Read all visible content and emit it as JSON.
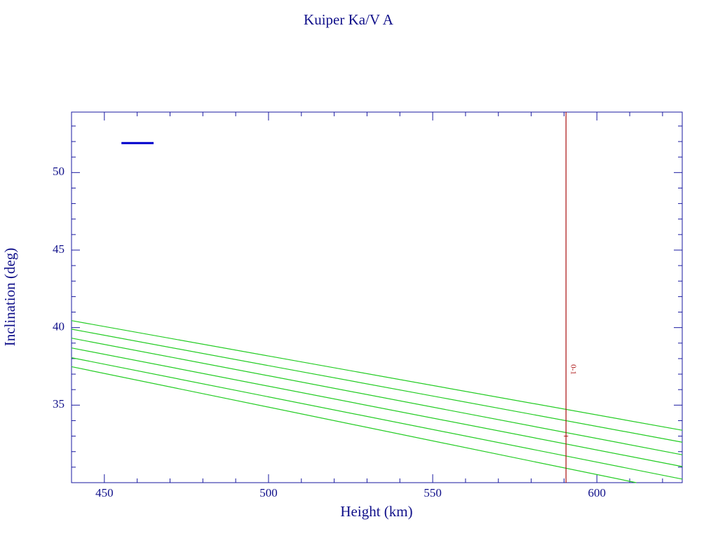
{
  "chart_data": {
    "type": "line",
    "title": "Kuiper Ka/V A",
    "x_label": "Height (km)",
    "y_label": "Inclination (deg)",
    "xlim": [
      440,
      626
    ],
    "ylim": [
      30,
      53.9
    ],
    "xticks": [
      450,
      500,
      550,
      600
    ],
    "yticks": [
      35,
      40,
      45,
      50
    ],
    "x_minor_ticks": [
      440,
      460,
      470,
      480,
      490,
      510,
      520,
      530,
      540,
      560,
      570,
      580,
      590,
      610,
      620
    ],
    "y_minor_ticks": [
      31,
      32,
      33,
      34,
      36,
      37,
      38,
      39,
      41,
      42,
      43,
      44,
      46,
      47,
      48,
      49,
      51,
      52,
      53
    ],
    "axis_color": "#1a1aa0",
    "series": [
      {
        "color": "#22cc22",
        "x": [
          440,
          626
        ],
        "values": [
          40.45,
          33.38
        ]
      },
      {
        "color": "#22cc22",
        "x": [
          440,
          626
        ],
        "values": [
          39.9,
          32.61
        ]
      },
      {
        "color": "#22cc22",
        "x": [
          440,
          626
        ],
        "values": [
          39.32,
          31.8
        ]
      },
      {
        "color": "#22cc22",
        "x": [
          440,
          626
        ],
        "values": [
          38.69,
          31.04
        ]
      },
      {
        "color": "#22cc22",
        "x": [
          440,
          626
        ],
        "values": [
          38.06,
          30.23
        ]
      },
      {
        "color": "#22cc22",
        "x": [
          440,
          612
        ],
        "values": [
          37.48,
          30
        ]
      }
    ],
    "marker": {
      "color": "#0000cc",
      "x": [
        455.2,
        465
      ],
      "values": [
        51.9,
        51.9
      ]
    },
    "vline": {
      "x": 590.6,
      "color": "#aa1111",
      "label": "0-1",
      "label_y": 37.3,
      "tick_y": 33
    }
  }
}
